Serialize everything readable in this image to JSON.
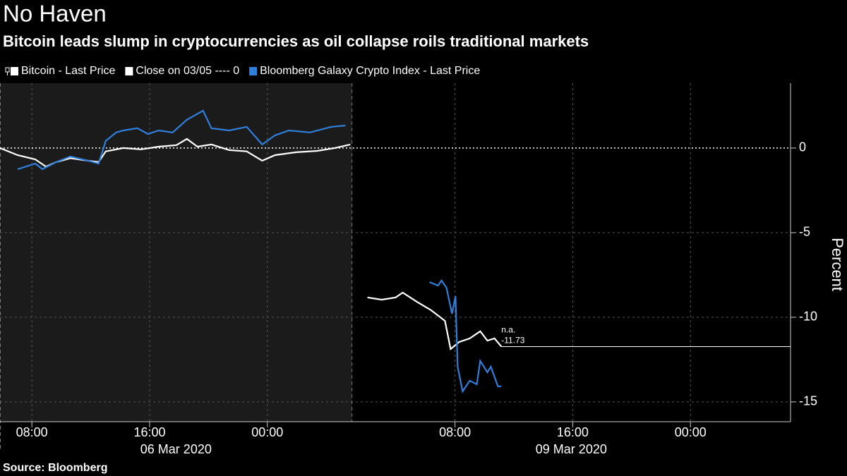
{
  "chart_data": {
    "type": "line",
    "title": "No Haven",
    "subtitle": "Bitcoin leads slump in cryptocurrencies as oil collapse roils traditional markets",
    "y_label": "Percent",
    "source": "Source: Bloomberg",
    "x_segments": [
      [
        "2020-03-06T05:50",
        "2020-03-07T05:45"
      ],
      [
        "2020-03-09T01:00",
        "2020-03-10T06:48"
      ]
    ],
    "x_groups": [
      "06 Mar 2020",
      "09 Mar 2020"
    ],
    "xticks": [
      {
        "value": "2020-03-06T08:00",
        "label": "08:00"
      },
      {
        "value": "2020-03-06T16:00",
        "label": "16:00"
      },
      {
        "value": "2020-03-07T00:00",
        "label": "00:00"
      },
      {
        "value": "2020-03-09T08:00",
        "label": "08:00"
      },
      {
        "value": "2020-03-09T16:00",
        "label": "16:00"
      },
      {
        "value": "2020-03-10T00:00",
        "label": "00:00"
      }
    ],
    "ylim": [
      -16.17,
      3.83
    ],
    "yticks": [
      -15,
      -10,
      -5,
      0
    ],
    "grid": true,
    "reference": {
      "name": "Close on 03/05 ---- 0",
      "value": 0,
      "color": "#ffffff"
    },
    "last_price": {
      "value": -11.73,
      "label": "-11.73"
    },
    "na_label": "n.a.",
    "series": [
      {
        "name": "Bitcoin - Last Price",
        "color": "#ffffff",
        "x": [
          "2020-03-06T05:50",
          "2020-03-06T07:02",
          "2020-03-06T08:14",
          "2020-03-06T08:57",
          "2020-03-06T09:40",
          "2020-03-06T10:37",
          "2020-03-06T11:49",
          "2020-03-06T12:32",
          "2020-03-06T13:01",
          "2020-03-06T14:13",
          "2020-03-06T15:25",
          "2020-03-06T16:37",
          "2020-03-06T17:49",
          "2020-03-06T18:32",
          "2020-03-06T19:15",
          "2020-03-06T20:12",
          "2020-03-06T21:24",
          "2020-03-06T22:36",
          "2020-03-06T23:39",
          "2020-03-07T00:31",
          "2020-03-07T01:57",
          "2020-03-07T03:23",
          "2020-03-07T04:35",
          "2020-03-07T05:38",
          "2020-03-09T02:03",
          "2020-03-09T03:01",
          "2020-03-09T03:58",
          "2020-03-09T04:27",
          "2020-03-09T05:24",
          "2020-03-09T06:22",
          "2020-03-09T07:19",
          "2020-03-09T07:42",
          "2020-03-09T08:17",
          "2020-03-09T09:00",
          "2020-03-09T09:43",
          "2020-03-09T10:12",
          "2020-03-09T10:41",
          "2020-03-09T11:09"
        ],
        "values": [
          0,
          -0.42,
          -0.67,
          -1.1,
          -0.83,
          -0.6,
          -0.75,
          -0.83,
          -0.2,
          0,
          -0.08,
          0.08,
          0.17,
          0.54,
          0.08,
          0.21,
          -0.12,
          -0.2,
          -0.75,
          -0.42,
          -0.25,
          -0.17,
          0,
          0.21,
          -8.83,
          -8.96,
          -8.83,
          -8.54,
          -9.08,
          -9.58,
          -10.21,
          -11.88,
          -11.46,
          -11.25,
          -10.83,
          -11.38,
          -11.25,
          -11.73
        ]
      },
      {
        "name": "Bloomberg Galaxy Crypto Index - Last Price",
        "color": "#2f7fdc",
        "x": [
          "2020-03-06T07:02",
          "2020-03-06T08:14",
          "2020-03-06T08:43",
          "2020-03-06T09:40",
          "2020-03-06T10:37",
          "2020-03-06T11:49",
          "2020-03-06T12:32",
          "2020-03-06T13:01",
          "2020-03-06T13:44",
          "2020-03-06T14:13",
          "2020-03-06T15:10",
          "2020-03-06T15:53",
          "2020-03-06T16:37",
          "2020-03-06T17:34",
          "2020-03-06T18:32",
          "2020-03-06T19:38",
          "2020-03-06T20:12",
          "2020-03-06T21:24",
          "2020-03-06T22:36",
          "2020-03-06T23:39",
          "2020-03-07T00:31",
          "2020-03-07T01:28",
          "2020-03-07T02:54",
          "2020-03-07T04:20",
          "2020-03-07T05:18",
          "2020-03-09T06:16",
          "2020-03-09T06:51",
          "2020-03-09T07:05",
          "2020-03-09T07:25",
          "2020-03-09T07:48",
          "2020-03-09T08:02",
          "2020-03-09T08:11",
          "2020-03-09T08:31",
          "2020-03-09T09:00",
          "2020-03-09T09:29",
          "2020-03-09T09:43",
          "2020-03-09T10:12",
          "2020-03-09T10:26",
          "2020-03-09T10:55",
          "2020-03-09T11:09"
        ],
        "values": [
          -1.25,
          -0.92,
          -1.25,
          -0.83,
          -0.5,
          -0.75,
          -0.92,
          0.42,
          0.92,
          1.04,
          1.17,
          0.83,
          1.04,
          0.92,
          1.67,
          2.21,
          1.17,
          1.04,
          1.25,
          0.21,
          0.75,
          1.04,
          0.92,
          1.25,
          1.33,
          -7.92,
          -8.13,
          -7.83,
          -8.25,
          -9.79,
          -8.75,
          -12.92,
          -14.38,
          -13.75,
          -13.96,
          -12.58,
          -13.25,
          -12.92,
          -14.08,
          -14.08
        ]
      }
    ]
  }
}
